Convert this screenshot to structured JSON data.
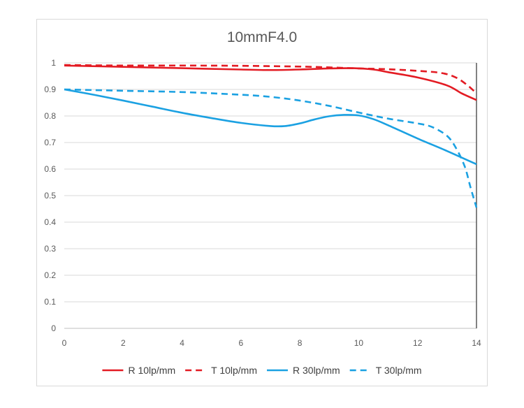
{
  "chart_data": {
    "type": "line",
    "title": "10mmF4.0",
    "xlabel": "",
    "ylabel": "",
    "xlim": [
      0,
      14
    ],
    "ylim": [
      0,
      1
    ],
    "x_ticks": [
      "0",
      "2",
      "4",
      "6",
      "8",
      "10",
      "12",
      "14"
    ],
    "y_ticks": [
      "0",
      "0.1",
      "0.2",
      "0.3",
      "0.4",
      "0.5",
      "0.6",
      "0.7",
      "0.8",
      "0.9",
      "1"
    ],
    "grid": "horizontal",
    "legend_position": "bottom",
    "series": [
      {
        "name": "R 10lp/mm",
        "color": "#e31b23",
        "style": "solid",
        "x": [
          0,
          2,
          4,
          6,
          7,
          8,
          9,
          9.8,
          10.5,
          11,
          12,
          13,
          13.5,
          14
        ],
        "y": [
          0.99,
          0.985,
          0.98,
          0.975,
          0.973,
          0.975,
          0.979,
          0.98,
          0.975,
          0.965,
          0.945,
          0.915,
          0.885,
          0.86
        ]
      },
      {
        "name": "T 10lp/mm",
        "color": "#e31b23",
        "style": "dashed",
        "x": [
          0,
          2,
          4,
          6,
          8,
          9,
          10,
          11,
          12,
          12.8,
          13.3,
          13.7,
          14
        ],
        "y": [
          0.992,
          0.99,
          0.99,
          0.989,
          0.986,
          0.983,
          0.979,
          0.976,
          0.97,
          0.962,
          0.945,
          0.915,
          0.885
        ]
      },
      {
        "name": "R 30lp/mm",
        "color": "#1ba1e2",
        "style": "solid",
        "x": [
          0,
          1,
          2,
          3,
          4,
          5,
          6,
          7,
          7.5,
          8,
          8.5,
          9,
          9.5,
          10,
          10.5,
          11,
          12,
          13,
          14
        ],
        "y": [
          0.9,
          0.88,
          0.858,
          0.835,
          0.812,
          0.792,
          0.774,
          0.762,
          0.762,
          0.772,
          0.787,
          0.799,
          0.804,
          0.802,
          0.788,
          0.765,
          0.715,
          0.668,
          0.618
        ]
      },
      {
        "name": "T 30lp/mm",
        "color": "#1ba1e2",
        "style": "dashed",
        "x": [
          0,
          2,
          4,
          6,
          7,
          8,
          9,
          10,
          11,
          12,
          12.5,
          13,
          13.3,
          13.6,
          13.8,
          14
        ],
        "y": [
          0.9,
          0.895,
          0.89,
          0.88,
          0.872,
          0.858,
          0.838,
          0.813,
          0.79,
          0.772,
          0.758,
          0.725,
          0.68,
          0.61,
          0.53,
          0.455
        ]
      }
    ]
  }
}
